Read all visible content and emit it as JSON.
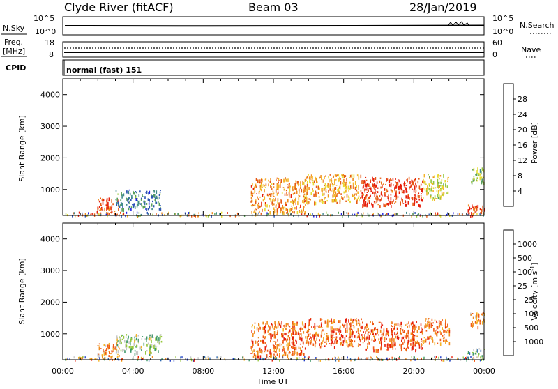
{
  "header": {
    "station": "Clyde River (fitACF)",
    "beam": "Beam 03",
    "date": "28/Jan/2019"
  },
  "nsky_panel": {
    "left_label": "N.Sky",
    "left_ticks": [
      "10^5",
      "10^0"
    ],
    "right_label": "N.Search",
    "right_ticks": [
      "10^5",
      "10^0"
    ]
  },
  "freq_panel": {
    "left_label_line1": "Freq.",
    "left_label_line2": "[MHz]",
    "left_ticks": [
      "18",
      "8"
    ],
    "right_label": "Nave",
    "right_ticks": [
      "60",
      "0"
    ]
  },
  "cpid_panel": {
    "label": "CPID",
    "value": "normal (fast) 151"
  },
  "x_axis": {
    "label": "Time UT",
    "ticks": [
      "00:00",
      "04:00",
      "08:00",
      "12:00",
      "16:00",
      "20:00",
      "00:00"
    ]
  },
  "colors": {
    "power_scale": [
      "#1f1fe6",
      "#2e56b4",
      "#3f8a8a",
      "#5aa05a",
      "#96c83c",
      "#e6dc32",
      "#f5b428",
      "#f08c1e",
      "#e65a14",
      "#e61e0a"
    ],
    "velocity_scale": [
      "#e61e0a",
      "#f05a14",
      "#f08c1e",
      "#f5b428",
      "#c8c8c8",
      "#96c83c",
      "#3f9a6a",
      "#2e6ab4",
      "#1f3cc8"
    ]
  },
  "chart_data": [
    {
      "type": "heatmap",
      "quantity": "Power",
      "ylabel": "Slant Range [km]",
      "ylim": [
        180,
        4500
      ],
      "yticks": [
        1000,
        2000,
        3000,
        4000
      ],
      "xlim_hours": [
        0,
        24
      ],
      "colorbar_label": "Power [dB]",
      "colorbar_range": [
        0,
        32
      ],
      "colorbar_ticks": [
        "4",
        "8",
        "12",
        "16",
        "20",
        "24",
        "28"
      ],
      "regions": [
        {
          "t": [
            1.9,
            3.2
          ],
          "range": [
            250,
            750
          ],
          "level": 0.9
        },
        {
          "t": [
            3.0,
            5.6
          ],
          "range": [
            400,
            1000
          ],
          "level": 0.25
        },
        {
          "t": [
            10.7,
            13.8
          ],
          "range": [
            300,
            1400
          ],
          "level": 0.75
        },
        {
          "t": [
            13.8,
            17.0
          ],
          "range": [
            600,
            1500
          ],
          "level": 0.7
        },
        {
          "t": [
            17.0,
            20.5
          ],
          "range": [
            500,
            1400
          ],
          "level": 0.95
        },
        {
          "t": [
            20.5,
            22.0
          ],
          "range": [
            700,
            1500
          ],
          "level": 0.55
        },
        {
          "t": [
            23.0,
            24.0
          ],
          "range": [
            250,
            550
          ],
          "level": 0.95
        },
        {
          "t": [
            23.2,
            24.0
          ],
          "range": [
            1200,
            1700
          ],
          "level": 0.45
        }
      ]
    },
    {
      "type": "heatmap",
      "quantity": "Velocity",
      "ylabel": "Slant Range [km]",
      "ylim": [
        180,
        4500
      ],
      "yticks": [
        1000,
        2000,
        3000,
        4000
      ],
      "xlim_hours": [
        0,
        24
      ],
      "colorbar_label": "Velocity [m s^-1]",
      "colorbar_ticks": [
        "1000",
        "500",
        "100",
        "25",
        "−25",
        "−100",
        "−500",
        "−1000"
      ],
      "regions": [
        {
          "t": [
            1.9,
            3.2
          ],
          "range": [
            300,
            750
          ],
          "level": 0.3
        },
        {
          "t": [
            3.0,
            5.6
          ],
          "range": [
            400,
            1000
          ],
          "level": 0.6
        },
        {
          "t": [
            10.7,
            13.8
          ],
          "range": [
            300,
            1400
          ],
          "level": 0.2
        },
        {
          "t": [
            13.8,
            17.0
          ],
          "range": [
            600,
            1500
          ],
          "level": 0.2
        },
        {
          "t": [
            17.0,
            20.5
          ],
          "range": [
            500,
            1400
          ],
          "level": 0.15
        },
        {
          "t": [
            20.5,
            22.0
          ],
          "range": [
            700,
            1500
          ],
          "level": 0.25
        },
        {
          "t": [
            23.0,
            24.0
          ],
          "range": [
            250,
            550
          ],
          "level": 0.65
        },
        {
          "t": [
            23.2,
            24.0
          ],
          "range": [
            1200,
            1700
          ],
          "level": 0.3
        }
      ]
    }
  ]
}
